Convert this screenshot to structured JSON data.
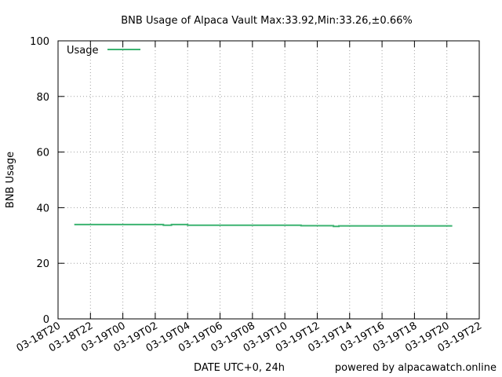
{
  "chart_data": {
    "type": "line",
    "title": "BNB Usage of Alpaca Vault Max:33.92,Min:33.26,±0.66%",
    "xlabel": "DATE UTC+0, 24h",
    "ylabel": "BNB Usage",
    "credit": "powered by alpacawatch.online",
    "ylim": [
      0,
      100
    ],
    "yticks": [
      0,
      20,
      40,
      60,
      80,
      100
    ],
    "xlim": [
      "03-18T20:00",
      "03-19T22:00"
    ],
    "xticks": [
      "03-18T20",
      "03-18T22",
      "03-19T00",
      "03-19T02",
      "03-19T04",
      "03-19T06",
      "03-19T08",
      "03-19T10",
      "03-19T12",
      "03-19T14",
      "03-19T16",
      "03-19T18",
      "03-19T20",
      "03-19T22"
    ],
    "grid": true,
    "legend_position": "top-left",
    "series": [
      {
        "name": "Usage",
        "color": "#3cb371",
        "x": [
          "03-18T21:00",
          "03-19T02:30",
          "03-19T02:30",
          "03-19T03:00",
          "03-19T03:00",
          "03-19T04:00",
          "03-19T04:00",
          "03-19T11:00",
          "03-19T11:00",
          "03-19T13:00",
          "03-19T13:00",
          "03-19T13:20",
          "03-19T13:20",
          "03-19T20:20"
        ],
        "values": [
          33.92,
          33.92,
          33.7,
          33.7,
          33.92,
          33.92,
          33.7,
          33.7,
          33.5,
          33.5,
          33.26,
          33.26,
          33.45,
          33.45
        ]
      }
    ]
  }
}
